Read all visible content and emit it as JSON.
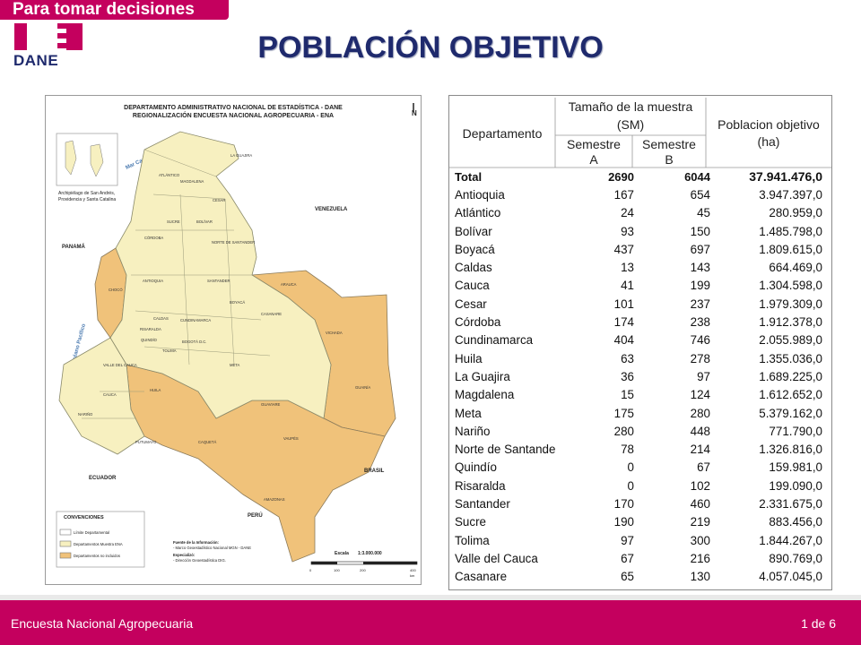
{
  "header": {
    "tagline": "Para tomar decisiones",
    "logo_text": "DANE",
    "title": "POBLACIÓN OBJETIVO"
  },
  "map": {
    "title_line1": "DEPARTAMENTO ADMINISTRATIVO NACIONAL DE ESTADÍSTICA - DANE",
    "title_line2": "REGIONALIZACIÓN ENCUESTA NACIONAL AGROPECUARIA - ENA",
    "inset_caption1": "Archipiélago de San Andrés,",
    "inset_caption2": "Providencia y Santa Catalina",
    "sea_caribe": "Mar Caribe",
    "sea_pacifico": "Océano Pacífico",
    "countries": [
      "PANAMÁ",
      "VENEZUELA",
      "ECUADOR",
      "PERÚ",
      "BRASIL"
    ],
    "departments": [
      "LA GUAJIRA",
      "ATLÁNTICO",
      "MAGDALENA",
      "CESAR",
      "SUCRE",
      "BOLÍVAR",
      "CÓRDOBA",
      "NORTE DE SANTANDER",
      "ANTIOQUIA",
      "SANTANDER",
      "CHOCÓ",
      "ARAUCA",
      "BOYACÁ",
      "CASANARE",
      "CALDAS",
      "CUNDINAMARCA",
      "RISARALDA",
      "QUINDÍO",
      "BOGOTÁ D.C.",
      "TOLIMA",
      "VICHADA",
      "VALLE DEL CAUCA",
      "META",
      "HUILA",
      "CAUCA",
      "GUAINÍA",
      "GUAVIARE",
      "NARIÑO",
      "CAQUETÁ",
      "PUTUMAYO",
      "VAUPÉS",
      "AMAZONAS"
    ],
    "legend_title": "CONVENCIONES",
    "legend_items": [
      "Límite Departamental",
      "Departamentos Muestra ENA",
      "Departamentos no incluidos"
    ],
    "source_line1": "Fuente de la Información:",
    "source_line2": "- Marco Geoestadístico Nacional MGN - DANE",
    "source_line3": "Especializó:",
    "source_line4": "- Dirección Geoestadística DIG.",
    "scale_label": "Escala",
    "scale_value": "1:3.000.000",
    "scale_ticks": [
      "0",
      "100",
      "200",
      "400"
    ],
    "scale_unit": "km",
    "north": "N",
    "colors": {
      "sample": "#f7f0c0",
      "excluded": "#f0c27a",
      "border": "#7a7a7a"
    }
  },
  "table": {
    "headers": {
      "dept": "Departamento",
      "sample_line1": "Tamaño de la muestra",
      "sample_line2": "(SM)",
      "semA_line1": "Semestre",
      "semA_line2": "A",
      "semB_line1": "Semestre",
      "semB_line2": "B",
      "pop_line1": "Poblacion objetivo",
      "pop_line2": "(ha)"
    },
    "rows": [
      {
        "dept": "Total",
        "a": "2690",
        "b": "6044",
        "pop": "37.941.476,0"
      },
      {
        "dept": "Antioquia",
        "a": "167",
        "b": "654",
        "pop": "3.947.397,0"
      },
      {
        "dept": "Atlántico",
        "a": "24",
        "b": "45",
        "pop": "280.959,0"
      },
      {
        "dept": "Bolívar",
        "a": "93",
        "b": "150",
        "pop": "1.485.798,0"
      },
      {
        "dept": "Boyacá",
        "a": "437",
        "b": "697",
        "pop": "1.809.615,0"
      },
      {
        "dept": "Caldas",
        "a": "13",
        "b": "143",
        "pop": "664.469,0"
      },
      {
        "dept": "Cauca",
        "a": "41",
        "b": "199",
        "pop": "1.304.598,0"
      },
      {
        "dept": "Cesar",
        "a": "101",
        "b": "237",
        "pop": "1.979.309,0"
      },
      {
        "dept": "Córdoba",
        "a": "174",
        "b": "238",
        "pop": "1.912.378,0"
      },
      {
        "dept": "Cundinamarca",
        "a": "404",
        "b": "746",
        "pop": "2.055.989,0"
      },
      {
        "dept": "Huila",
        "a": "63",
        "b": "278",
        "pop": "1.355.036,0"
      },
      {
        "dept": "La Guajira",
        "a": "36",
        "b": "97",
        "pop": "1.689.225,0"
      },
      {
        "dept": "Magdalena",
        "a": "15",
        "b": "124",
        "pop": "1.612.652,0"
      },
      {
        "dept": "Meta",
        "a": "175",
        "b": "280",
        "pop": "5.379.162,0"
      },
      {
        "dept": "Nariño",
        "a": "280",
        "b": "448",
        "pop": "771.790,0"
      },
      {
        "dept": "Norte de Santande",
        "a": "78",
        "b": "214",
        "pop": "1.326.816,0"
      },
      {
        "dept": "Quindío",
        "a": "0",
        "b": "67",
        "pop": "159.981,0"
      },
      {
        "dept": "Risaralda",
        "a": "0",
        "b": "102",
        "pop": "199.090,0"
      },
      {
        "dept": "Santander",
        "a": "170",
        "b": "460",
        "pop": "2.331.675,0"
      },
      {
        "dept": "Sucre",
        "a": "190",
        "b": "219",
        "pop": "883.456,0"
      },
      {
        "dept": "Tolima",
        "a": "97",
        "b": "300",
        "pop": "1.844.267,0"
      },
      {
        "dept": "Valle del Cauca",
        "a": "67",
        "b": "216",
        "pop": "890.769,0"
      },
      {
        "dept": "Casanare",
        "a": "65",
        "b": "130",
        "pop": "4.057.045,0"
      }
    ]
  },
  "footer": {
    "left": "Encuesta Nacional Agropecuaria",
    "right": "1 de 6"
  }
}
